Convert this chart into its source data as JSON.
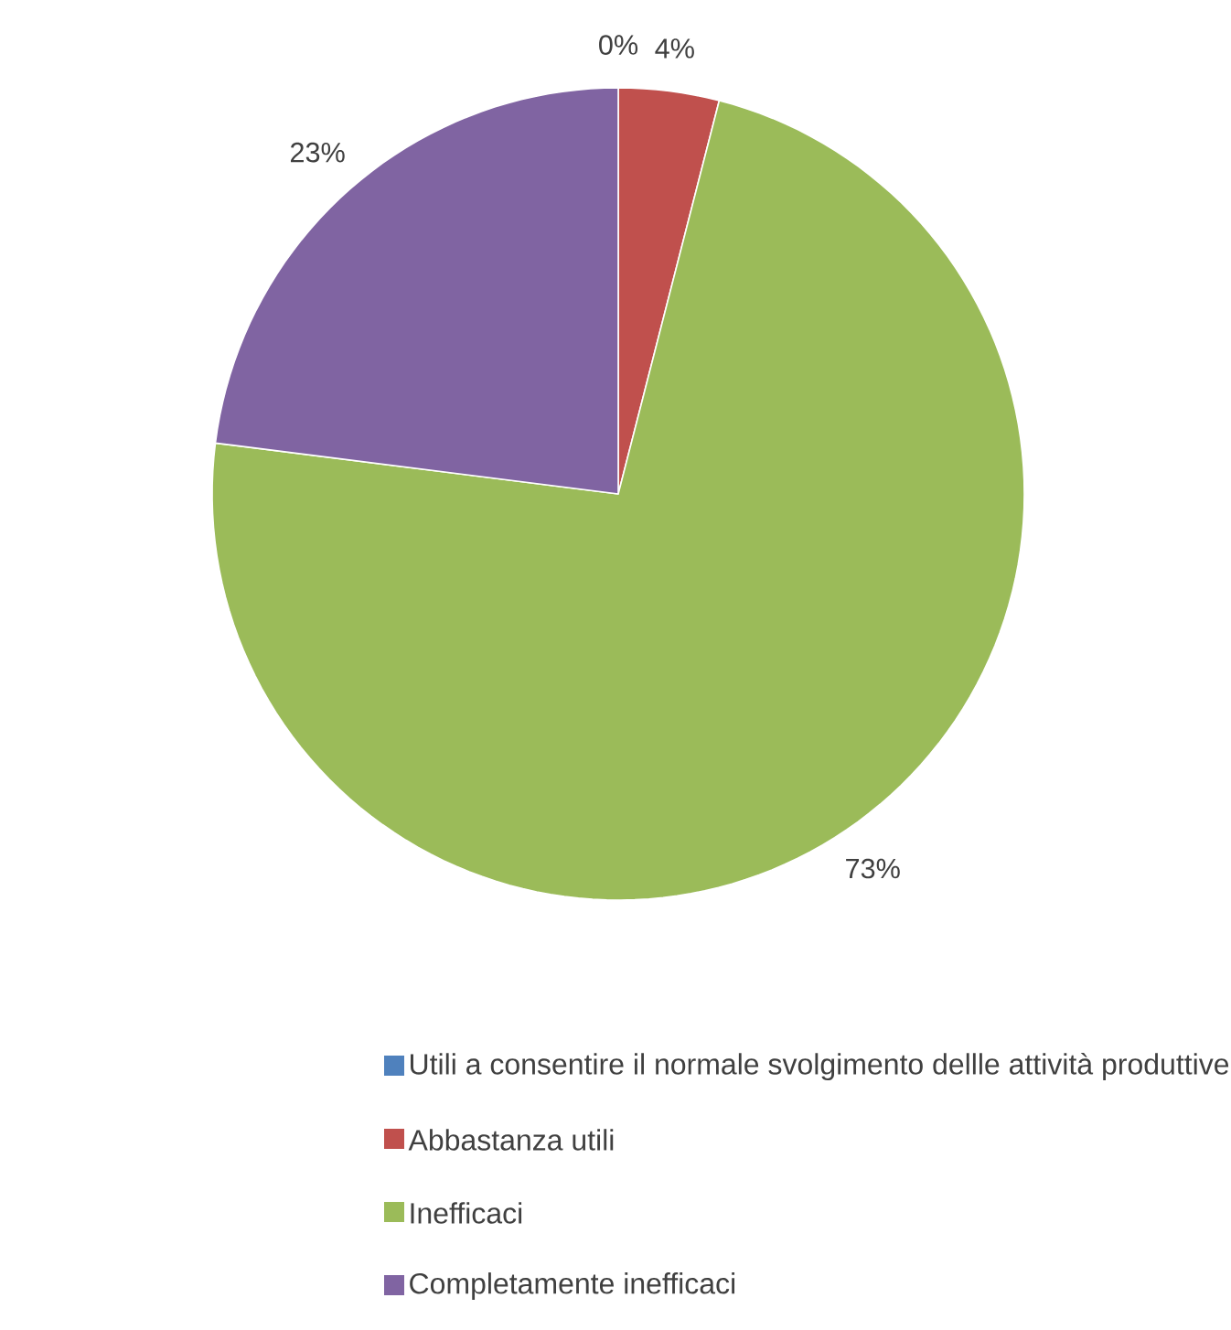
{
  "chart_data": {
    "type": "pie",
    "categories": [
      "Utili a consentire il normale svolgimento dellle attività produttive",
      "Abbastanza utili",
      "Inefficaci",
      "Completamente inefficaci"
    ],
    "values": [
      0,
      4,
      73,
      23
    ],
    "colors": [
      "#4f81bd",
      "#c0504d",
      "#9bbb59",
      "#8064a2"
    ],
    "value_labels": [
      "0%",
      "4%",
      "73%",
      "23%"
    ],
    "legend": "bottom"
  }
}
